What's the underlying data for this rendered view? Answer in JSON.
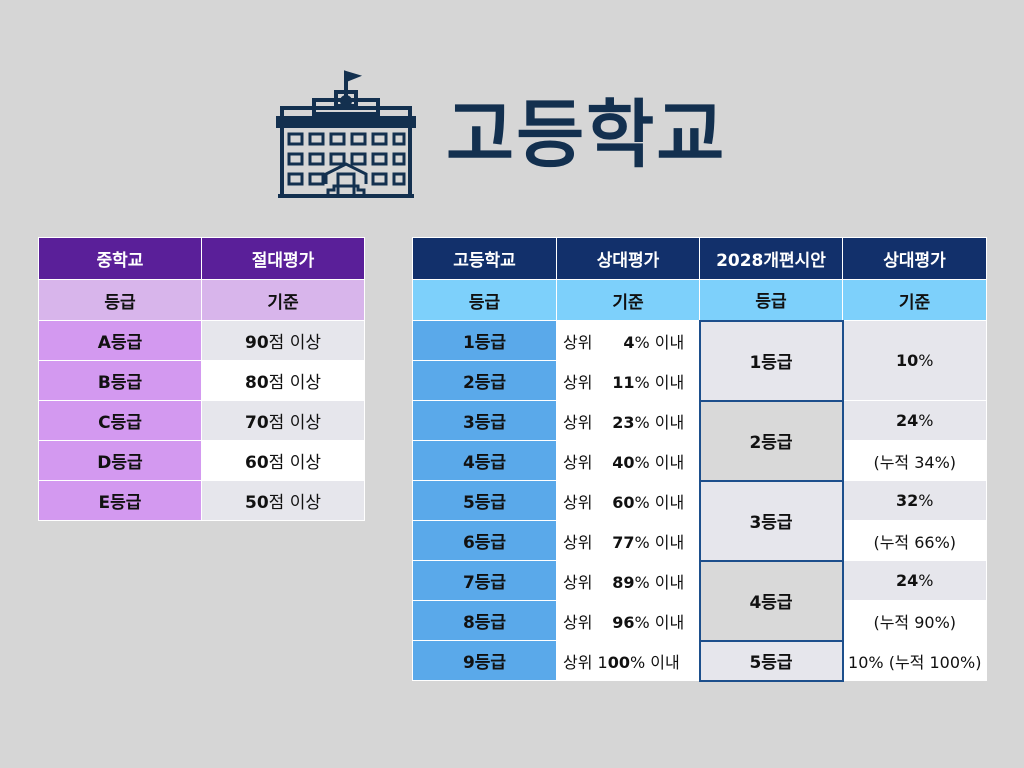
{
  "title": "고등학교",
  "icon": "school-building-icon",
  "middle_school": {
    "headers": [
      "중학교",
      "절대평가"
    ],
    "subheaders": [
      "등급",
      "기준"
    ],
    "rows": [
      {
        "grade": "A등급",
        "score": "90",
        "suffix": "점 이상"
      },
      {
        "grade": "B등급",
        "score": "80",
        "suffix": "점 이상"
      },
      {
        "grade": "C등급",
        "score": "70",
        "suffix": "점 이상"
      },
      {
        "grade": "D등급",
        "score": "60",
        "suffix": "점 이상"
      },
      {
        "grade": "E등급",
        "score": "50",
        "suffix": "점 이상"
      }
    ]
  },
  "high_school": {
    "headers": [
      "고등학교",
      "상대평가",
      "2028개편시안",
      "상대평가"
    ],
    "subheaders": [
      "등급",
      "기준",
      "등급",
      "기준"
    ],
    "current": [
      {
        "grade": "1등급",
        "prefix": "상위",
        "pct": "4",
        "suffix": "% 이내"
      },
      {
        "grade": "2등급",
        "prefix": "상위",
        "pct": "11",
        "suffix": "% 이내"
      },
      {
        "grade": "3등급",
        "prefix": "상위",
        "pct": "23",
        "suffix": "% 이내"
      },
      {
        "grade": "4등급",
        "prefix": "상위",
        "pct": "40",
        "suffix": "% 이내"
      },
      {
        "grade": "5등급",
        "prefix": "상위",
        "pct": "60",
        "suffix": "% 이내"
      },
      {
        "grade": "6등급",
        "prefix": "상위",
        "pct": "77",
        "suffix": "% 이내"
      },
      {
        "grade": "7등급",
        "prefix": "상위",
        "pct": "89",
        "suffix": "% 이내"
      },
      {
        "grade": "8등급",
        "prefix": "상위",
        "pct": "96",
        "suffix": "% 이내"
      },
      {
        "grade": "9등급",
        "prefix": "상위 1",
        "pct": "00",
        "suffix": "% 이내"
      }
    ],
    "new": [
      {
        "grade": "1등급",
        "pct": "10",
        "pct_suffix": "%"
      },
      {
        "grade": "2등급",
        "pct": "24",
        "pct_suffix": "%",
        "cumulative": "(누적 34%)"
      },
      {
        "grade": "3등급",
        "pct": "32",
        "pct_suffix": "%",
        "cumulative": "(누적 66%)"
      },
      {
        "grade": "4등급",
        "pct": "24",
        "pct_suffix": "%",
        "cumulative": "(누적 90%)"
      },
      {
        "grade": "5등급",
        "pct": "10% (누적 100%)"
      }
    ]
  }
}
